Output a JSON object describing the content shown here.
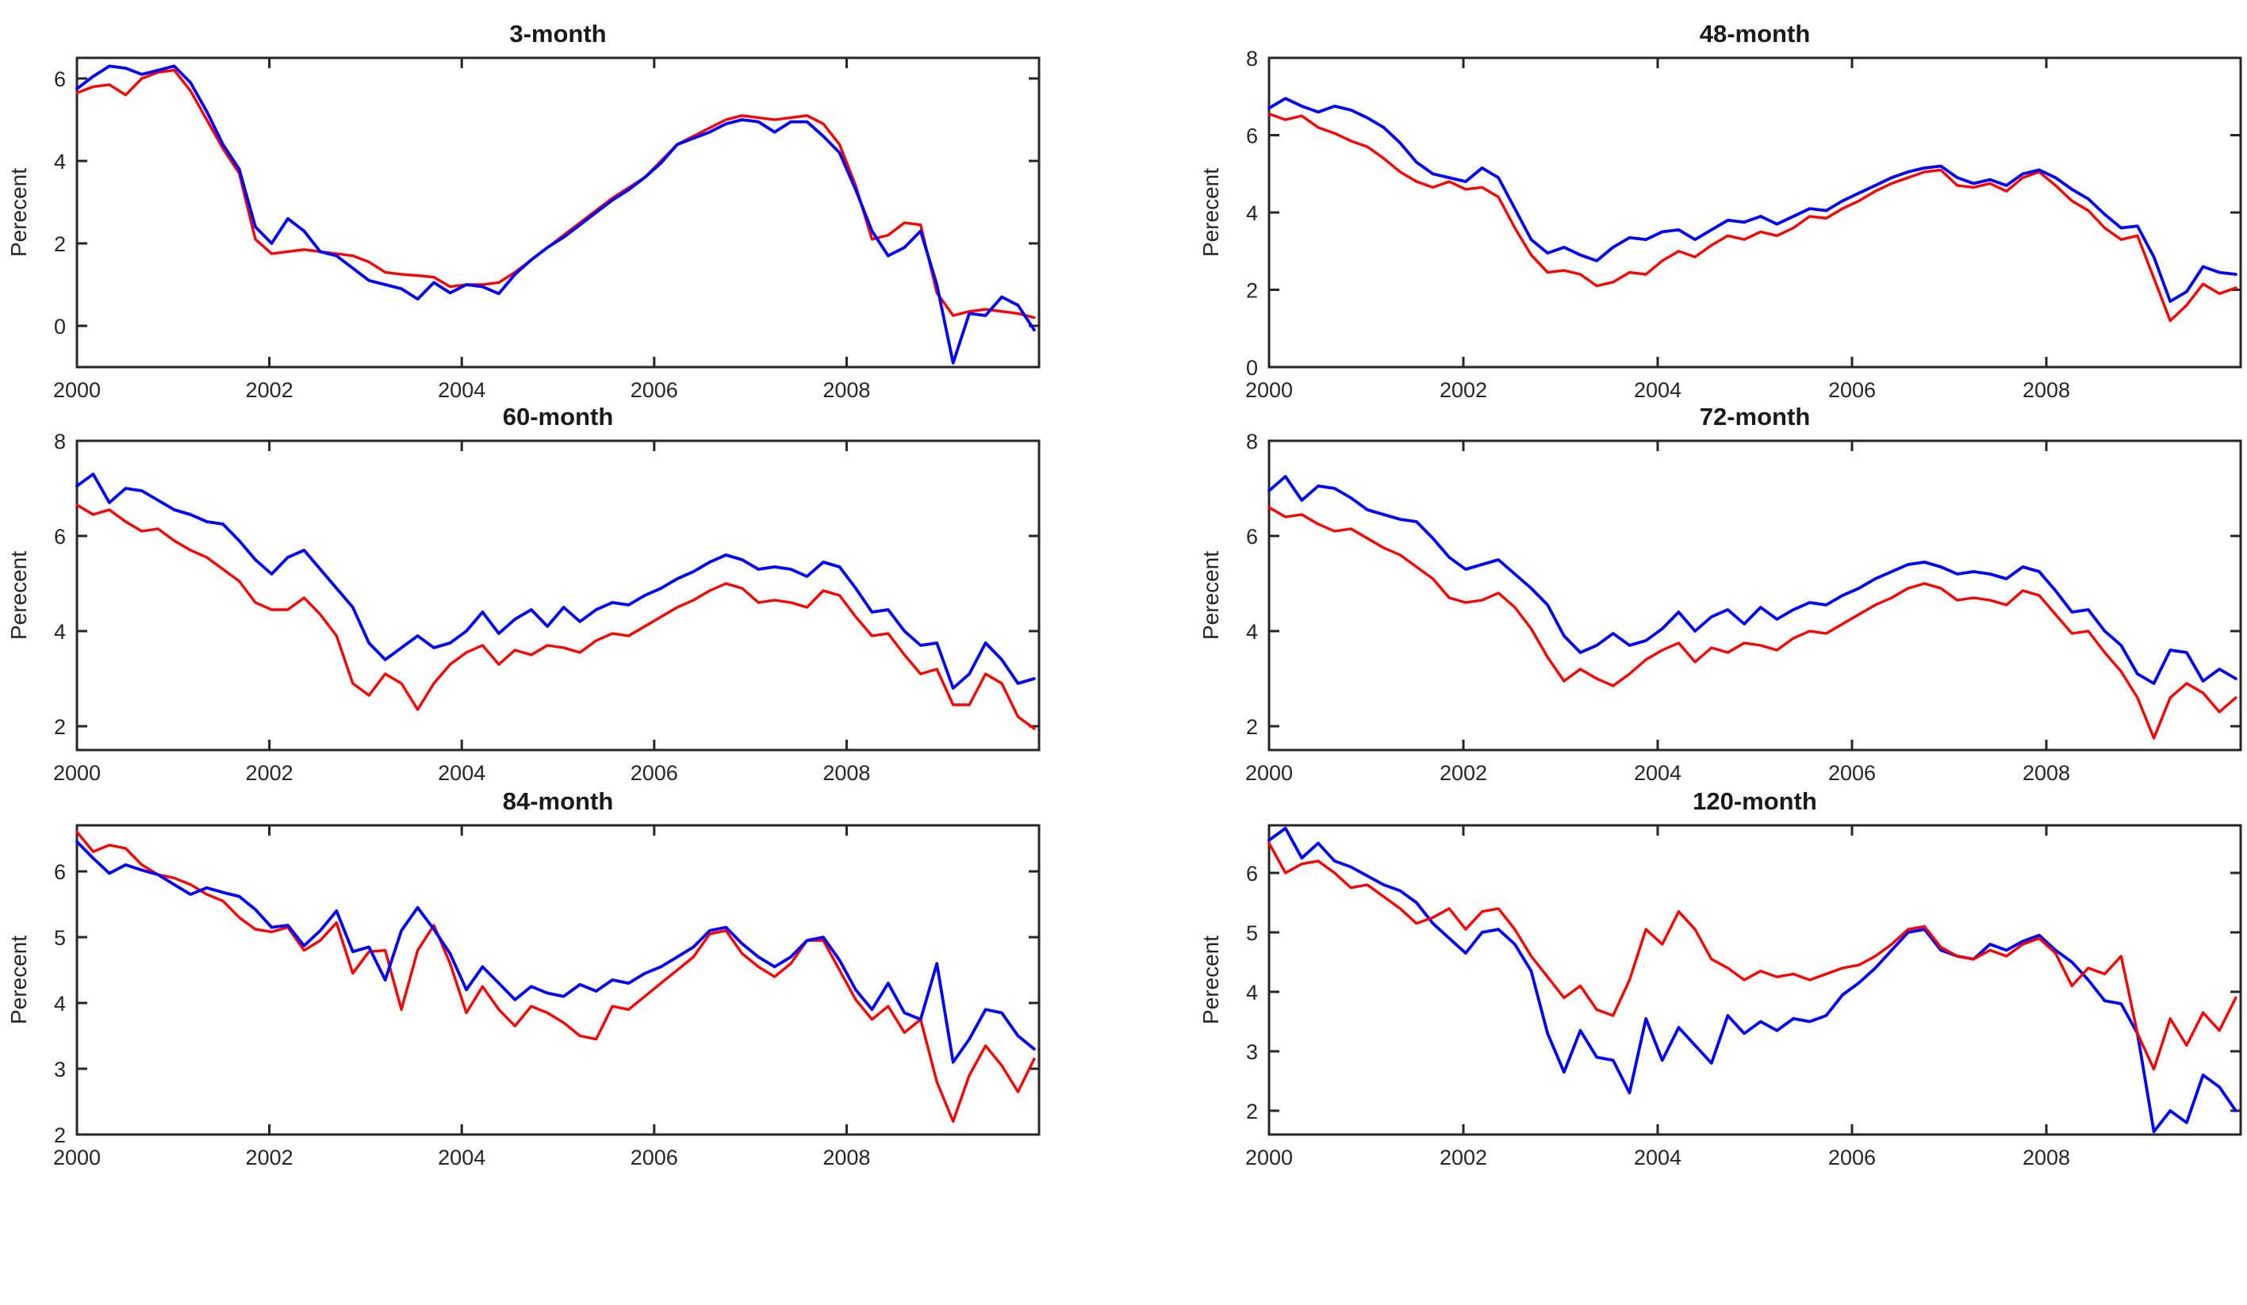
{
  "colors": {
    "red_series": "#ff0000",
    "blue_series": "#0000ff",
    "axis": "#262626"
  },
  "chart_data": [
    {
      "type": "line",
      "title": "3-month",
      "ylabel": "Perecent",
      "xlabel": "",
      "xlim": [
        2000,
        2010
      ],
      "ylim": [
        -1.0,
        6.5
      ],
      "xticks": [
        2000,
        2002,
        2004,
        2006,
        2008
      ],
      "yticks": [
        0,
        2,
        4,
        6
      ],
      "x_start": 2000,
      "x_end": 2009.95,
      "grid": false,
      "legend": "none",
      "series": [
        {
          "name": "red-line",
          "color_key": "red_series",
          "width": 3.4,
          "values": [
            5.65,
            5.8,
            5.85,
            5.6,
            6.0,
            6.15,
            6.2,
            5.7,
            5.0,
            4.3,
            3.7,
            2.1,
            1.75,
            1.8,
            1.85,
            1.8,
            1.75,
            1.7,
            1.55,
            1.3,
            1.25,
            1.22,
            1.18,
            0.95,
            1.0,
            1.0,
            1.05,
            1.3,
            1.6,
            1.9,
            2.2,
            2.5,
            2.8,
            3.1,
            3.35,
            3.6,
            4.0,
            4.4,
            4.6,
            4.8,
            5.0,
            5.1,
            5.05,
            5.0,
            5.05,
            5.1,
            4.9,
            4.4,
            3.4,
            2.1,
            2.2,
            2.5,
            2.45,
            0.8,
            0.25,
            0.35,
            0.4,
            0.35,
            0.3,
            0.2
          ]
        },
        {
          "name": "blue-line",
          "color_key": "blue_series",
          "width": 3.8,
          "values": [
            5.75,
            6.05,
            6.3,
            6.25,
            6.1,
            6.2,
            6.3,
            5.9,
            5.2,
            4.4,
            3.8,
            2.4,
            2.0,
            2.6,
            2.3,
            1.8,
            1.7,
            1.4,
            1.1,
            1.0,
            0.9,
            0.65,
            1.05,
            0.8,
            1.0,
            0.95,
            0.78,
            1.25,
            1.6,
            1.9,
            2.15,
            2.45,
            2.75,
            3.05,
            3.3,
            3.6,
            3.95,
            4.4,
            4.55,
            4.7,
            4.9,
            5.0,
            4.95,
            4.7,
            4.95,
            4.95,
            4.6,
            4.2,
            3.3,
            2.3,
            1.7,
            1.9,
            2.3,
            1.0,
            -0.9,
            0.3,
            0.25,
            0.7,
            0.5,
            -0.1
          ]
        }
      ]
    },
    {
      "type": "line",
      "title": "48-month",
      "ylabel": "Perecent",
      "xlabel": "",
      "xlim": [
        2000,
        2010
      ],
      "ylim": [
        0,
        8
      ],
      "xticks": [
        2000,
        2002,
        2004,
        2006,
        2008
      ],
      "yticks": [
        0,
        2,
        4,
        6,
        8
      ],
      "x_start": 2000,
      "x_end": 2009.95,
      "grid": false,
      "legend": "none",
      "series": [
        {
          "name": "red-line",
          "color_key": "red_series",
          "width": 3.4,
          "values": [
            6.55,
            6.4,
            6.5,
            6.2,
            6.05,
            5.85,
            5.7,
            5.4,
            5.05,
            4.8,
            4.65,
            4.8,
            4.6,
            4.65,
            4.4,
            3.6,
            2.9,
            2.45,
            2.5,
            2.4,
            2.1,
            2.2,
            2.45,
            2.4,
            2.75,
            3.0,
            2.85,
            3.15,
            3.4,
            3.3,
            3.5,
            3.4,
            3.6,
            3.9,
            3.85,
            4.1,
            4.3,
            4.55,
            4.75,
            4.9,
            5.05,
            5.1,
            4.7,
            4.65,
            4.75,
            4.55,
            4.9,
            5.05,
            4.7,
            4.3,
            4.05,
            3.6,
            3.3,
            3.4,
            2.3,
            1.2,
            1.6,
            2.15,
            1.9,
            2.05
          ]
        },
        {
          "name": "blue-line",
          "color_key": "blue_series",
          "width": 3.8,
          "values": [
            6.7,
            6.95,
            6.75,
            6.6,
            6.75,
            6.65,
            6.45,
            6.2,
            5.8,
            5.3,
            5.0,
            4.9,
            4.8,
            5.15,
            4.9,
            4.1,
            3.3,
            2.95,
            3.1,
            2.9,
            2.75,
            3.1,
            3.35,
            3.3,
            3.5,
            3.55,
            3.3,
            3.55,
            3.8,
            3.75,
            3.9,
            3.7,
            3.9,
            4.1,
            4.05,
            4.3,
            4.5,
            4.7,
            4.9,
            5.05,
            5.15,
            5.2,
            4.9,
            4.75,
            4.85,
            4.7,
            5.0,
            5.1,
            4.9,
            4.6,
            4.35,
            3.95,
            3.6,
            3.65,
            2.85,
            1.7,
            1.95,
            2.6,
            2.45,
            2.4
          ]
        }
      ]
    },
    {
      "type": "line",
      "title": "60-month",
      "ylabel": "Perecent",
      "xlabel": "",
      "xlim": [
        2000,
        2010
      ],
      "ylim": [
        1.5,
        8
      ],
      "xticks": [
        2000,
        2002,
        2004,
        2006,
        2008
      ],
      "yticks": [
        2,
        4,
        6,
        8
      ],
      "x_start": 2000,
      "x_end": 2009.95,
      "grid": false,
      "legend": "none",
      "series": [
        {
          "name": "red-line",
          "color_key": "red_series",
          "width": 3.4,
          "values": [
            6.65,
            6.45,
            6.55,
            6.3,
            6.1,
            6.15,
            5.9,
            5.7,
            5.55,
            5.3,
            5.05,
            4.6,
            4.45,
            4.45,
            4.7,
            4.35,
            3.9,
            2.9,
            2.65,
            3.1,
            2.9,
            2.35,
            2.9,
            3.3,
            3.55,
            3.7,
            3.3,
            3.6,
            3.5,
            3.7,
            3.65,
            3.55,
            3.8,
            3.95,
            3.9,
            4.1,
            4.3,
            4.5,
            4.65,
            4.85,
            5.0,
            4.9,
            4.6,
            4.65,
            4.6,
            4.5,
            4.85,
            4.75,
            4.3,
            3.9,
            3.95,
            3.5,
            3.1,
            3.2,
            2.45,
            2.45,
            3.1,
            2.9,
            2.2,
            1.95
          ]
        },
        {
          "name": "blue-line",
          "color_key": "blue_series",
          "width": 3.8,
          "values": [
            7.05,
            7.3,
            6.7,
            7.0,
            6.95,
            6.75,
            6.55,
            6.45,
            6.3,
            6.25,
            5.9,
            5.5,
            5.2,
            5.55,
            5.7,
            5.3,
            4.9,
            4.5,
            3.75,
            3.4,
            3.65,
            3.9,
            3.65,
            3.75,
            4.0,
            4.4,
            3.95,
            4.25,
            4.45,
            4.1,
            4.5,
            4.2,
            4.45,
            4.6,
            4.55,
            4.75,
            4.9,
            5.1,
            5.25,
            5.45,
            5.6,
            5.5,
            5.3,
            5.35,
            5.3,
            5.15,
            5.45,
            5.35,
            4.9,
            4.4,
            4.45,
            4.0,
            3.7,
            3.75,
            2.8,
            3.1,
            3.75,
            3.4,
            2.9,
            3.0
          ]
        }
      ]
    },
    {
      "type": "line",
      "title": "72-month",
      "ylabel": "Perecent",
      "xlabel": "",
      "xlim": [
        2000,
        2010
      ],
      "ylim": [
        1.5,
        8
      ],
      "xticks": [
        2000,
        2002,
        2004,
        2006,
        2008
      ],
      "yticks": [
        2,
        4,
        6,
        8
      ],
      "x_start": 2000,
      "x_end": 2009.95,
      "grid": false,
      "legend": "none",
      "series": [
        {
          "name": "red-line",
          "color_key": "red_series",
          "width": 3.4,
          "values": [
            6.6,
            6.4,
            6.45,
            6.25,
            6.1,
            6.15,
            5.95,
            5.75,
            5.6,
            5.35,
            5.1,
            4.7,
            4.6,
            4.65,
            4.8,
            4.5,
            4.05,
            3.45,
            2.95,
            3.2,
            3.0,
            2.85,
            3.1,
            3.4,
            3.6,
            3.75,
            3.35,
            3.65,
            3.55,
            3.75,
            3.7,
            3.6,
            3.85,
            4.0,
            3.95,
            4.15,
            4.35,
            4.55,
            4.7,
            4.9,
            5.0,
            4.9,
            4.65,
            4.7,
            4.65,
            4.55,
            4.85,
            4.75,
            4.35,
            3.95,
            4.0,
            3.55,
            3.15,
            2.6,
            1.75,
            2.6,
            2.9,
            2.7,
            2.3,
            2.6
          ]
        },
        {
          "name": "blue-line",
          "color_key": "blue_series",
          "width": 3.8,
          "values": [
            6.95,
            7.25,
            6.75,
            7.05,
            7.0,
            6.8,
            6.55,
            6.45,
            6.35,
            6.3,
            5.95,
            5.55,
            5.3,
            5.4,
            5.5,
            5.2,
            4.9,
            4.55,
            3.9,
            3.55,
            3.7,
            3.95,
            3.7,
            3.8,
            4.05,
            4.4,
            4.0,
            4.3,
            4.45,
            4.15,
            4.5,
            4.25,
            4.45,
            4.6,
            4.55,
            4.75,
            4.9,
            5.1,
            5.25,
            5.4,
            5.45,
            5.35,
            5.2,
            5.25,
            5.2,
            5.1,
            5.35,
            5.25,
            4.85,
            4.4,
            4.45,
            4.0,
            3.7,
            3.1,
            2.9,
            3.6,
            3.55,
            2.95,
            3.2,
            3.0
          ]
        }
      ]
    },
    {
      "type": "line",
      "title": "84-month",
      "ylabel": "Perecent",
      "xlabel": "",
      "xlim": [
        2000,
        2010
      ],
      "ylim": [
        2,
        6.7
      ],
      "xticks": [
        2000,
        2002,
        2004,
        2006,
        2008
      ],
      "yticks": [
        2,
        3,
        4,
        5,
        6
      ],
      "x_start": 2000,
      "x_end": 2009.95,
      "grid": false,
      "legend": "none",
      "series": [
        {
          "name": "red-line",
          "color_key": "red_series",
          "width": 3.4,
          "values": [
            6.6,
            6.3,
            6.4,
            6.35,
            6.1,
            5.95,
            5.9,
            5.8,
            5.65,
            5.55,
            5.3,
            5.12,
            5.08,
            5.15,
            4.8,
            4.95,
            5.22,
            4.45,
            4.78,
            4.8,
            3.9,
            4.8,
            5.18,
            4.6,
            3.85,
            4.25,
            3.9,
            3.65,
            3.95,
            3.85,
            3.7,
            3.5,
            3.45,
            3.95,
            3.9,
            4.1,
            4.3,
            4.5,
            4.7,
            5.05,
            5.1,
            4.75,
            4.55,
            4.4,
            4.6,
            4.95,
            4.95,
            4.5,
            4.05,
            3.75,
            3.95,
            3.55,
            3.75,
            2.8,
            2.2,
            2.9,
            3.35,
            3.05,
            2.65,
            3.15
          ]
        },
        {
          "name": "blue-line",
          "color_key": "blue_series",
          "width": 3.8,
          "values": [
            6.45,
            6.2,
            5.97,
            6.1,
            6.02,
            5.95,
            5.8,
            5.65,
            5.75,
            5.68,
            5.62,
            5.42,
            5.15,
            5.18,
            4.87,
            5.1,
            5.4,
            4.78,
            4.85,
            4.35,
            5.1,
            5.45,
            5.12,
            4.75,
            4.2,
            4.55,
            4.3,
            4.05,
            4.25,
            4.15,
            4.1,
            4.28,
            4.18,
            4.35,
            4.3,
            4.45,
            4.55,
            4.7,
            4.85,
            5.1,
            5.15,
            4.9,
            4.7,
            4.55,
            4.7,
            4.95,
            5.0,
            4.65,
            4.2,
            3.9,
            4.3,
            3.85,
            3.75,
            4.6,
            3.1,
            3.45,
            3.9,
            3.85,
            3.5,
            3.3
          ]
        }
      ]
    },
    {
      "type": "line",
      "title": "120-month",
      "ylabel": "Perecent",
      "xlabel": "",
      "xlim": [
        2000,
        2010
      ],
      "ylim": [
        1.6,
        6.8
      ],
      "xticks": [
        2000,
        2002,
        2004,
        2006,
        2008
      ],
      "yticks": [
        2,
        3,
        4,
        5,
        6
      ],
      "x_start": 2000,
      "x_end": 2009.95,
      "grid": false,
      "legend": "none",
      "series": [
        {
          "name": "blue-line",
          "color_key": "blue_series",
          "width": 3.8,
          "values": [
            6.55,
            6.75,
            6.25,
            6.5,
            6.2,
            6.1,
            5.95,
            5.8,
            5.7,
            5.5,
            5.15,
            4.9,
            4.65,
            5.0,
            5.05,
            4.8,
            4.35,
            3.3,
            2.65,
            3.35,
            2.9,
            2.85,
            2.3,
            3.55,
            2.85,
            3.4,
            3.1,
            2.8,
            3.6,
            3.3,
            3.5,
            3.35,
            3.55,
            3.5,
            3.6,
            3.95,
            4.15,
            4.4,
            4.7,
            5.0,
            5.05,
            4.7,
            4.6,
            4.55,
            4.8,
            4.7,
            4.85,
            4.95,
            4.7,
            4.5,
            4.2,
            3.85,
            3.8,
            3.3,
            1.65,
            2.0,
            1.8,
            2.6,
            2.4,
            2.0
          ]
        },
        {
          "name": "red-line",
          "color_key": "red_series",
          "width": 3.4,
          "values": [
            6.5,
            6.0,
            6.15,
            6.2,
            6.0,
            5.75,
            5.8,
            5.6,
            5.4,
            5.15,
            5.25,
            5.4,
            5.05,
            5.35,
            5.4,
            5.05,
            4.6,
            4.25,
            3.9,
            4.1,
            3.7,
            3.6,
            4.2,
            5.05,
            4.8,
            5.35,
            5.05,
            4.55,
            4.4,
            4.2,
            4.35,
            4.25,
            4.3,
            4.2,
            4.3,
            4.4,
            4.45,
            4.6,
            4.8,
            5.05,
            5.1,
            4.75,
            4.6,
            4.55,
            4.7,
            4.6,
            4.8,
            4.9,
            4.65,
            4.1,
            4.4,
            4.3,
            4.6,
            3.3,
            2.7,
            3.55,
            3.1,
            3.65,
            3.35,
            3.9
          ]
        }
      ]
    }
  ]
}
